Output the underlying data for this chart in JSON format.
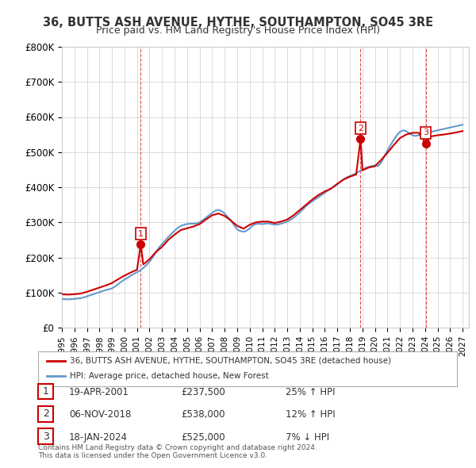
{
  "title": "36, BUTTS ASH AVENUE, HYTHE, SOUTHAMPTON, SO45 3RE",
  "subtitle": "Price paid vs. HM Land Registry's House Price Index (HPI)",
  "ylabel_ticks": [
    "£0",
    "£100K",
    "£200K",
    "£300K",
    "£400K",
    "£500K",
    "£600K",
    "£700K",
    "£800K"
  ],
  "ytick_values": [
    0,
    100000,
    200000,
    300000,
    400000,
    500000,
    600000,
    700000,
    800000
  ],
  "ylim": [
    0,
    800000
  ],
  "xlim_start": 1995.0,
  "xlim_end": 2027.5,
  "sale_color": "#cc0000",
  "hpi_color": "#6699cc",
  "sale_label": "36, BUTTS ASH AVENUE, HYTHE, SOUTHAMPTON, SO45 3RE (detached house)",
  "hpi_label": "HPI: Average price, detached house, New Forest",
  "transactions": [
    {
      "num": 1,
      "date": "19-APR-2001",
      "price": 237500,
      "pct": "25%",
      "dir": "↑",
      "year": 2001.3
    },
    {
      "num": 2,
      "date": "06-NOV-2018",
      "price": 538000,
      "pct": "12%",
      "dir": "↑",
      "year": 2018.85
    },
    {
      "num": 3,
      "date": "18-JAN-2024",
      "price": 525000,
      "pct": "7%",
      "dir": "↓",
      "year": 2024.05
    }
  ],
  "footer": "Contains HM Land Registry data © Crown copyright and database right 2024.\nThis data is licensed under the Open Government Licence v3.0.",
  "background_color": "#ffffff",
  "grid_color": "#cccccc",
  "hpi_data": {
    "years": [
      1995.0,
      1995.25,
      1995.5,
      1995.75,
      1996.0,
      1996.25,
      1996.5,
      1996.75,
      1997.0,
      1997.25,
      1997.5,
      1997.75,
      1998.0,
      1998.25,
      1998.5,
      1998.75,
      1999.0,
      1999.25,
      1999.5,
      1999.75,
      2000.0,
      2000.25,
      2000.5,
      2000.75,
      2001.0,
      2001.25,
      2001.5,
      2001.75,
      2002.0,
      2002.25,
      2002.5,
      2002.75,
      2003.0,
      2003.25,
      2003.5,
      2003.75,
      2004.0,
      2004.25,
      2004.5,
      2004.75,
      2005.0,
      2005.25,
      2005.5,
      2005.75,
      2006.0,
      2006.25,
      2006.5,
      2006.75,
      2007.0,
      2007.25,
      2007.5,
      2007.75,
      2008.0,
      2008.25,
      2008.5,
      2008.75,
      2009.0,
      2009.25,
      2009.5,
      2009.75,
      2010.0,
      2010.25,
      2010.5,
      2010.75,
      2011.0,
      2011.25,
      2011.5,
      2011.75,
      2012.0,
      2012.25,
      2012.5,
      2012.75,
      2013.0,
      2013.25,
      2013.5,
      2013.75,
      2014.0,
      2014.25,
      2014.5,
      2014.75,
      2015.0,
      2015.25,
      2015.5,
      2015.75,
      2016.0,
      2016.25,
      2016.5,
      2016.75,
      2017.0,
      2017.25,
      2017.5,
      2017.75,
      2018.0,
      2018.25,
      2018.5,
      2018.75,
      2019.0,
      2019.25,
      2019.5,
      2019.75,
      2020.0,
      2020.25,
      2020.5,
      2020.75,
      2021.0,
      2021.25,
      2021.5,
      2021.75,
      2022.0,
      2022.25,
      2022.5,
      2022.75,
      2023.0,
      2023.25,
      2023.5,
      2023.75,
      2024.0,
      2024.25,
      2024.5,
      2024.75,
      2025.0,
      2025.25,
      2025.5,
      2025.75,
      2026.0,
      2026.25,
      2026.5,
      2026.75,
      2027.0
    ],
    "values": [
      82000,
      81000,
      80500,
      81000,
      82000,
      83000,
      84000,
      86000,
      89000,
      92000,
      95000,
      98000,
      101000,
      104000,
      107000,
      109000,
      112000,
      117000,
      124000,
      131000,
      137000,
      142000,
      148000,
      153000,
      158000,
      163000,
      170000,
      178000,
      188000,
      200000,
      214000,
      228000,
      238000,
      248000,
      258000,
      267000,
      276000,
      284000,
      290000,
      293000,
      295000,
      296000,
      296000,
      297000,
      300000,
      306000,
      313000,
      320000,
      327000,
      333000,
      335000,
      332000,
      325000,
      315000,
      305000,
      292000,
      280000,
      275000,
      273000,
      276000,
      283000,
      291000,
      295000,
      296000,
      295000,
      296000,
      297000,
      295000,
      293000,
      294000,
      296000,
      299000,
      302000,
      307000,
      313000,
      320000,
      328000,
      337000,
      346000,
      354000,
      360000,
      366000,
      372000,
      378000,
      384000,
      391000,
      397000,
      402000,
      408000,
      415000,
      422000,
      428000,
      432000,
      436000,
      440000,
      445000,
      450000,
      455000,
      458000,
      460000,
      462000,
      460000,
      470000,
      488000,
      505000,
      520000,
      535000,
      548000,
      558000,
      562000,
      560000,
      553000,
      548000,
      546000,
      548000,
      552000,
      554000,
      556000,
      558000,
      560000,
      562000,
      564000,
      566000,
      568000,
      570000,
      572000,
      574000,
      576000,
      578000
    ]
  },
  "sale_data": {
    "years": [
      1995.0,
      1995.5,
      1996.0,
      1996.5,
      1997.0,
      1997.5,
      1998.0,
      1998.5,
      1999.0,
      1999.5,
      2000.0,
      2000.5,
      2001.0,
      2001.3,
      2001.5,
      2002.0,
      2002.5,
      2003.0,
      2003.5,
      2004.0,
      2004.5,
      2005.0,
      2005.5,
      2006.0,
      2006.5,
      2007.0,
      2007.5,
      2008.0,
      2008.5,
      2009.0,
      2009.5,
      2010.0,
      2010.5,
      2011.0,
      2011.5,
      2012.0,
      2012.5,
      2013.0,
      2013.5,
      2014.0,
      2014.5,
      2015.0,
      2015.5,
      2016.0,
      2016.5,
      2017.0,
      2017.5,
      2018.0,
      2018.5,
      2018.85,
      2019.0,
      2019.5,
      2020.0,
      2020.5,
      2021.0,
      2021.5,
      2022.0,
      2022.5,
      2023.0,
      2023.5,
      2024.05,
      2024.5,
      2025.0,
      2025.5,
      2026.0,
      2026.5,
      2027.0
    ],
    "values": [
      95000,
      94000,
      95000,
      97000,
      102000,
      108000,
      114000,
      120000,
      127000,
      138000,
      148000,
      157000,
      165000,
      237500,
      180000,
      195000,
      215000,
      230000,
      250000,
      265000,
      278000,
      283000,
      288000,
      295000,
      308000,
      320000,
      325000,
      318000,
      305000,
      290000,
      282000,
      293000,
      300000,
      302000,
      302000,
      298000,
      302000,
      308000,
      320000,
      335000,
      350000,
      365000,
      378000,
      388000,
      396000,
      410000,
      422000,
      430000,
      436000,
      538000,
      448000,
      456000,
      460000,
      478000,
      498000,
      520000,
      540000,
      550000,
      555000,
      555000,
      525000,
      545000,
      548000,
      550000,
      553000,
      556000,
      560000
    ]
  }
}
